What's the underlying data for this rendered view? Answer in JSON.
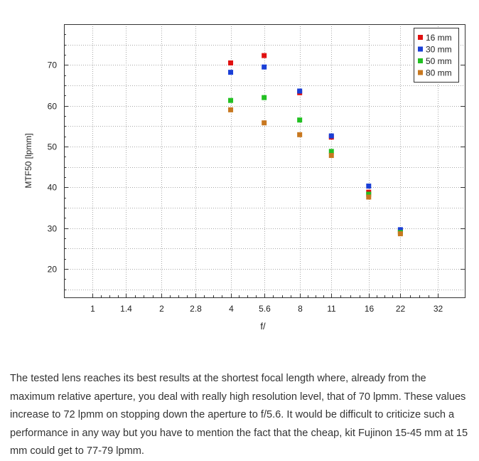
{
  "chart_data": {
    "type": "scatter",
    "title": "",
    "xlabel": "f/",
    "ylabel": "MTF50 [lpmm]",
    "x_scale": "log2",
    "x_ticks": [
      "1",
      "1.4",
      "2",
      "2.8",
      "4",
      "5.6",
      "8",
      "11",
      "16",
      "22",
      "32"
    ],
    "xlim": [
      0.75,
      42
    ],
    "ylim": [
      13,
      80
    ],
    "y_ticks": [
      20,
      30,
      40,
      50,
      60,
      70
    ],
    "grid": true,
    "legend_position": "top-right",
    "series": [
      {
        "name": "16 mm",
        "color": "#e01010",
        "points": [
          [
            "4",
            70.5
          ],
          [
            "5.6",
            72.3
          ],
          [
            "8",
            63.2
          ],
          [
            "11",
            52.3
          ],
          [
            "16",
            38.8
          ],
          [
            "22",
            29.2
          ]
        ]
      },
      {
        "name": "30 mm",
        "color": "#1a3fd6",
        "points": [
          [
            "4",
            68.2
          ],
          [
            "5.6",
            69.5
          ],
          [
            "8",
            63.6
          ],
          [
            "11",
            52.6
          ],
          [
            "16",
            40.3
          ],
          [
            "22",
            29.6
          ]
        ]
      },
      {
        "name": "50 mm",
        "color": "#22c022",
        "points": [
          [
            "4",
            61.3
          ],
          [
            "5.6",
            62.0
          ],
          [
            "8",
            56.5
          ],
          [
            "11",
            48.8
          ],
          [
            "16",
            38.3
          ],
          [
            "22",
            28.9
          ]
        ]
      },
      {
        "name": "80 mm",
        "color": "#c87820",
        "points": [
          [
            "4",
            59.0
          ],
          [
            "5.6",
            55.8
          ],
          [
            "8",
            52.9
          ],
          [
            "11",
            47.8
          ],
          [
            "16",
            37.6
          ],
          [
            "22",
            28.6
          ]
        ]
      }
    ]
  },
  "caption": "The tested lens reaches its best results at the shortest focal length where, already from the maximum relative aperture, you deal with really high resolution level, that of 70 lpmm. These values increase to 72 lpmm on stopping down the aperture to f/5.6. It would be difficult to criticize such a performance in any way but you have to mention the fact that the cheap, kit Fujinon 15-45 mm at 15 mm could get to 77-79 lpmm."
}
